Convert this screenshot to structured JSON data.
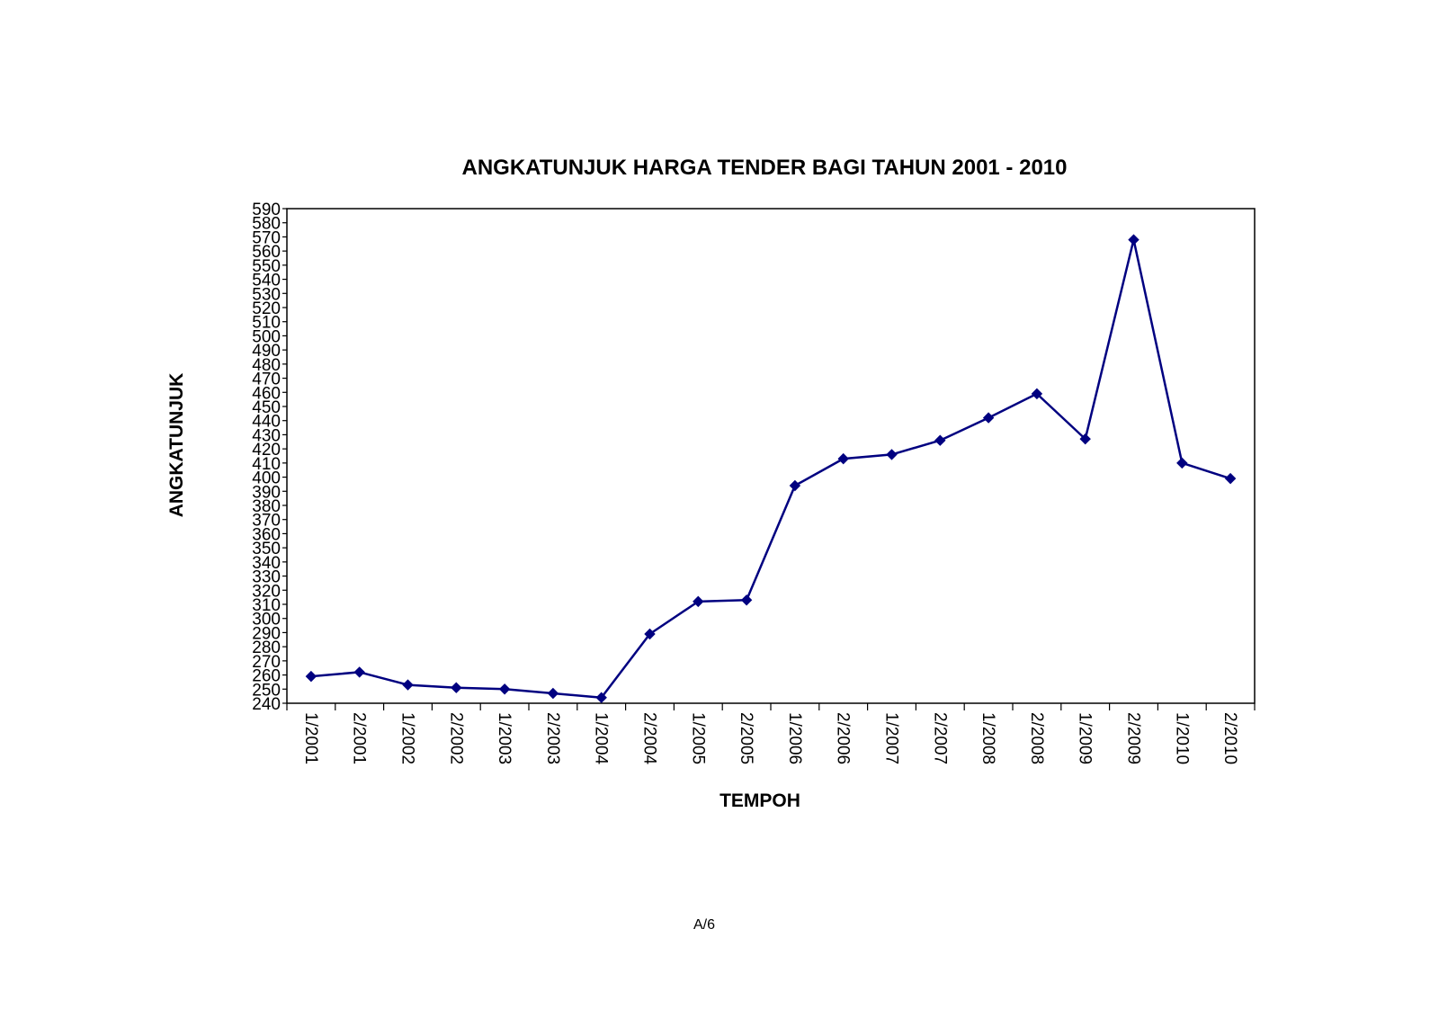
{
  "chart_data": {
    "type": "line",
    "title": "ANGKATUNJUK HARGA TENDER BAGI TAHUN 2001 - 2010",
    "xlabel": "TEMPOH",
    "ylabel": "ANGKATUNJUK",
    "categories": [
      "1/2001",
      "2/2001",
      "1/2002",
      "2/2002",
      "1/2003",
      "2/2003",
      "1/2004",
      "2/2004",
      "1/2005",
      "2/2005",
      "1/2006",
      "2/2006",
      "1/2007",
      "2/2007",
      "1/2008",
      "2/2008",
      "1/2009",
      "2/2009",
      "1/2010",
      "2/2010"
    ],
    "series": [
      {
        "values": [
          259,
          262,
          253,
          251,
          250,
          247,
          244,
          289,
          312,
          313,
          394,
          413,
          416,
          426,
          442,
          459,
          427,
          568,
          410,
          399
        ],
        "color": "#000080",
        "marker": "diamond"
      }
    ],
    "ylim": [
      240,
      590
    ],
    "yticks": [
      240,
      250,
      260,
      270,
      280,
      290,
      300,
      310,
      320,
      330,
      340,
      350,
      360,
      370,
      380,
      390,
      400,
      410,
      420,
      430,
      440,
      450,
      460,
      470,
      480,
      490,
      500,
      510,
      520,
      530,
      540,
      550,
      560,
      570,
      580,
      590
    ],
    "grid": false,
    "legend": "none"
  },
  "footer": {
    "page_label": "A/6"
  }
}
